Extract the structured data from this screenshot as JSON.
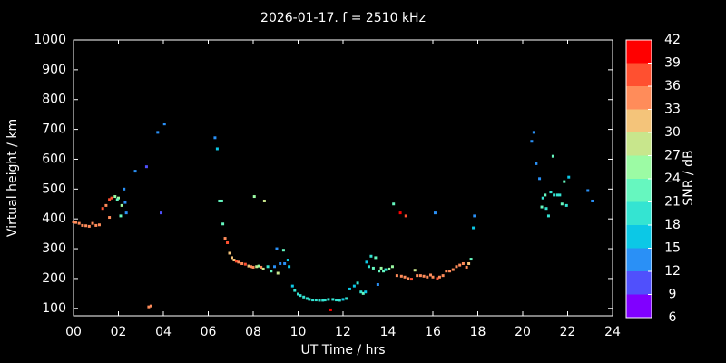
{
  "chart_data": {
    "type": "scatter",
    "title": "2026-01-17. f = 2510 kHz",
    "xlabel": "UT Time / hrs",
    "ylabel": "Virtual height / km",
    "xlim": [
      0,
      24
    ],
    "ylim": [
      75,
      1000
    ],
    "xticks": [
      {
        "value": 0,
        "label": "00"
      },
      {
        "value": 2,
        "label": "02"
      },
      {
        "value": 4,
        "label": "04"
      },
      {
        "value": 6,
        "label": "06"
      },
      {
        "value": 8,
        "label": "08"
      },
      {
        "value": 10,
        "label": "10"
      },
      {
        "value": 12,
        "label": "12"
      },
      {
        "value": 14,
        "label": "14"
      },
      {
        "value": 16,
        "label": "16"
      },
      {
        "value": 18,
        "label": "18"
      },
      {
        "value": 20,
        "label": "20"
      },
      {
        "value": 22,
        "label": "22"
      },
      {
        "value": 24,
        "label": "24"
      }
    ],
    "yticks": [
      100,
      200,
      300,
      400,
      500,
      600,
      700,
      800,
      900,
      1000
    ],
    "colorbar": {
      "label": "SNR / dB",
      "lim": [
        6,
        42
      ],
      "ticks": [
        6,
        9,
        12,
        15,
        18,
        21,
        24,
        27,
        30,
        33,
        36,
        39,
        42
      ],
      "colors": [
        "#8000ff",
        "#5050fc",
        "#2a90f6",
        "#0cc8e6",
        "#34e4d2",
        "#66f7bf",
        "#9cfba4",
        "#c8e68c",
        "#f4c47a",
        "#ff8c5a",
        "#ff5030",
        "#ff0000"
      ]
    },
    "x": [
      0.0,
      0.1,
      0.25,
      0.4,
      0.55,
      0.7,
      0.85,
      1.0,
      1.15,
      1.3,
      1.45,
      1.6,
      1.7,
      1.6,
      1.85,
      2.0,
      1.95,
      2.1,
      2.15,
      2.25,
      2.35,
      2.3,
      2.75,
      3.25,
      3.35,
      3.45,
      3.75,
      3.9,
      4.05,
      6.3,
      6.4,
      6.5,
      6.6,
      6.65,
      6.75,
      6.85,
      6.95,
      7.05,
      7.15,
      7.25,
      7.35,
      7.5,
      7.65,
      7.8,
      7.9,
      8.0,
      8.05,
      8.15,
      8.25,
      8.35,
      8.45,
      8.5,
      8.65,
      8.8,
      8.95,
      9.05,
      9.1,
      9.2,
      9.35,
      9.4,
      9.55,
      9.6,
      9.75,
      9.85,
      10.0,
      10.1,
      10.25,
      10.4,
      10.5,
      10.65,
      10.8,
      10.95,
      11.1,
      11.2,
      11.35,
      11.45,
      11.55,
      11.7,
      11.85,
      12.0,
      12.15,
      12.3,
      12.5,
      12.65,
      12.8,
      12.9,
      13.0,
      13.05,
      13.15,
      13.25,
      13.35,
      13.45,
      13.55,
      13.6,
      13.7,
      13.8,
      13.9,
      14.05,
      14.2,
      14.25,
      14.4,
      14.55,
      14.6,
      14.75,
      14.8,
      14.9,
      15.05,
      15.2,
      15.3,
      15.45,
      15.6,
      15.75,
      15.9,
      16.0,
      16.1,
      16.2,
      16.3,
      16.45,
      16.6,
      16.75,
      16.9,
      17.05,
      17.2,
      17.35,
      17.5,
      17.6,
      17.7,
      17.8,
      17.85,
      20.4,
      20.5,
      20.6,
      20.75,
      20.85,
      20.9,
      21.0,
      21.05,
      21.15,
      21.25,
      21.35,
      21.4,
      21.55,
      21.65,
      21.75,
      21.85,
      21.95,
      22.05,
      22.9,
      23.1
    ],
    "y": [
      390,
      388,
      385,
      378,
      377,
      375,
      385,
      378,
      380,
      435,
      445,
      465,
      470,
      405,
      475,
      470,
      465,
      410,
      445,
      500,
      420,
      455,
      560,
      575,
      105,
      108,
      690,
      420,
      718,
      672,
      635,
      460,
      460,
      383,
      335,
      320,
      285,
      270,
      262,
      258,
      255,
      250,
      248,
      242,
      240,
      238,
      475,
      240,
      242,
      238,
      232,
      460,
      240,
      225,
      240,
      300,
      218,
      250,
      295,
      250,
      262,
      240,
      175,
      160,
      148,
      143,
      138,
      133,
      130,
      128,
      128,
      127,
      127,
      128,
      130,
      95,
      130,
      128,
      127,
      130,
      133,
      165,
      175,
      185,
      155,
      150,
      155,
      255,
      240,
      275,
      235,
      270,
      180,
      225,
      235,
      225,
      230,
      232,
      240,
      450,
      210,
      420,
      208,
      205,
      410,
      200,
      198,
      228,
      210,
      210,
      208,
      205,
      212,
      205,
      420,
      200,
      205,
      210,
      225,
      225,
      230,
      240,
      245,
      250,
      238,
      250,
      265,
      370,
      410,
      660,
      690,
      585,
      535,
      440,
      470,
      480,
      435,
      410,
      490,
      610,
      480,
      480,
      480,
      450,
      525,
      445,
      540,
      495,
      460
    ],
    "snr": [
      33,
      33,
      33,
      33,
      33,
      33,
      33,
      33,
      33,
      36,
      33,
      36,
      36,
      33,
      24,
      24,
      21,
      21,
      24,
      12,
      12,
      12,
      12,
      9,
      33,
      33,
      12,
      9,
      12,
      12,
      15,
      21,
      21,
      21,
      33,
      36,
      30,
      30,
      30,
      36,
      33,
      33,
      36,
      30,
      33,
      33,
      24,
      27,
      24,
      33,
      27,
      27,
      18,
      21,
      12,
      12,
      27,
      12,
      21,
      12,
      15,
      15,
      15,
      18,
      18,
      18,
      18,
      18,
      18,
      18,
      18,
      18,
      18,
      18,
      18,
      39,
      18,
      18,
      18,
      15,
      18,
      15,
      15,
      18,
      18,
      21,
      15,
      15,
      18,
      18,
      21,
      21,
      12,
      21,
      24,
      21,
      18,
      24,
      24,
      21,
      33,
      39,
      33,
      33,
      36,
      33,
      36,
      27,
      33,
      33,
      33,
      33,
      33,
      33,
      12,
      36,
      33,
      33,
      33,
      33,
      33,
      33,
      33,
      33,
      33,
      30,
      21,
      15,
      12,
      12,
      12,
      12,
      12,
      21,
      18,
      21,
      18,
      18,
      18,
      21,
      18,
      18,
      18,
      21,
      21,
      18,
      15,
      12,
      12
    ]
  }
}
